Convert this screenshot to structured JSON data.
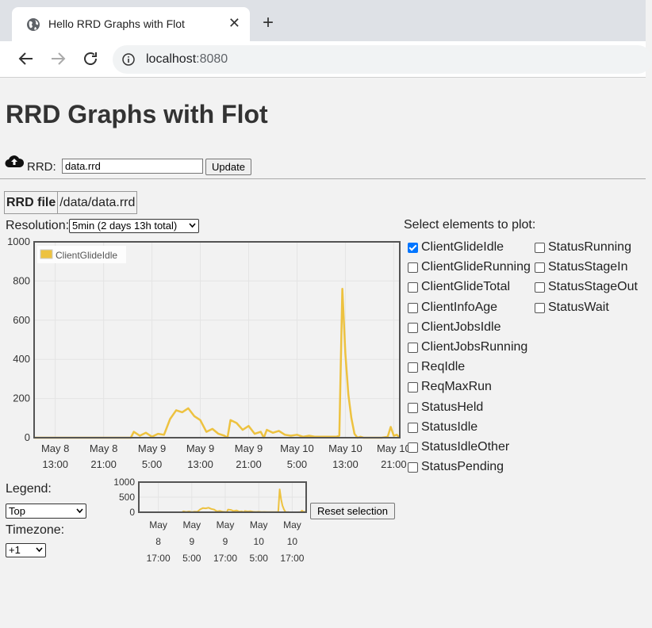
{
  "browser": {
    "tab_title": "Hello RRD Graphs with Flot",
    "close_glyph": "✕",
    "new_tab_glyph": "+",
    "url_host": "localhost",
    "url_port": ":8080"
  },
  "page": {
    "title": "RRD Graphs with Flot",
    "rrd_label": "RRD:",
    "rrd_input_value": "data.rrd",
    "update_label": "Update",
    "file_header": "RRD file",
    "file_path": "/data/data.rrd",
    "resolution_label": "Resolution:",
    "resolution_value": "5min (2 days 13h total)",
    "legend_label": "Legend:",
    "legend_value": "Top",
    "timezone_label": "Timezone:",
    "timezone_value": "+1",
    "reset_label": "Reset selection",
    "select_title": "Select elements to plot:"
  },
  "elements_col1": [
    {
      "label": "ClientGlideIdle",
      "checked": true
    },
    {
      "label": "ClientGlideRunning",
      "checked": false
    },
    {
      "label": "ClientGlideTotal",
      "checked": false
    },
    {
      "label": "ClientInfoAge",
      "checked": false
    },
    {
      "label": "ClientJobsIdle",
      "checked": false
    },
    {
      "label": "ClientJobsRunning",
      "checked": false
    },
    {
      "label": "ReqIdle",
      "checked": false
    },
    {
      "label": "ReqMaxRun",
      "checked": false
    },
    {
      "label": "StatusHeld",
      "checked": false
    },
    {
      "label": "StatusIdle",
      "checked": false
    },
    {
      "label": "StatusIdleOther",
      "checked": false
    },
    {
      "label": "StatusPending",
      "checked": false
    }
  ],
  "elements_col2": [
    {
      "label": "StatusRunning",
      "checked": false
    },
    {
      "label": "StatusStageIn",
      "checked": false
    },
    {
      "label": "StatusStageOut",
      "checked": false
    },
    {
      "label": "StatusWait",
      "checked": false
    }
  ],
  "colors": {
    "series": "#edc240",
    "grid": "#e4e4e4",
    "frame": "#545454"
  },
  "chart_data": [
    {
      "type": "line",
      "series": [
        {
          "name": "ClientGlideIdle"
        }
      ],
      "legend_position": "top-left",
      "ylim": [
        0,
        1000
      ],
      "y_ticks": [
        "0",
        "200",
        "400",
        "600",
        "800",
        "1000"
      ],
      "x_ticks": [
        [
          "May 8",
          "13:00"
        ],
        [
          "May 8",
          "21:00"
        ],
        [
          "May 9",
          "5:00"
        ],
        [
          "May 9",
          "13:00"
        ],
        [
          "May 9",
          "21:00"
        ],
        [
          "May 10",
          "5:00"
        ],
        [
          "May 10",
          "13:00"
        ],
        [
          "May 10",
          "21:00"
        ]
      ],
      "x_hours_from_may8_00": [
        13,
        21,
        29,
        37,
        45,
        53,
        61,
        69
      ],
      "x_range_hours": [
        9.5,
        70
      ],
      "x": [
        9.5,
        25.5,
        26,
        27,
        28,
        29,
        30,
        31,
        32,
        33,
        34,
        35,
        36,
        37,
        38,
        39,
        40,
        41,
        41.5,
        42,
        43,
        44,
        45,
        46,
        47,
        47.5,
        48,
        49,
        50,
        51,
        52,
        53,
        54,
        55,
        56,
        57,
        58,
        59,
        59.5,
        60,
        60.5,
        61,
        61.5,
        62,
        62.5,
        63,
        63.5,
        64,
        64.5,
        65,
        66,
        67,
        68,
        68.5,
        69,
        69.5,
        70
      ],
      "y": [
        0,
        0,
        30,
        10,
        25,
        5,
        20,
        15,
        95,
        140,
        130,
        150,
        110,
        90,
        30,
        45,
        20,
        10,
        0,
        90,
        75,
        40,
        60,
        20,
        30,
        0,
        40,
        25,
        35,
        15,
        10,
        15,
        5,
        10,
        5,
        5,
        5,
        5,
        5,
        10,
        760,
        430,
        220,
        100,
        20,
        0,
        5,
        0,
        0,
        0,
        0,
        0,
        5,
        55,
        10,
        15,
        0
      ]
    },
    {
      "type": "line",
      "series": [
        {
          "name": "ClientGlideIdle"
        }
      ],
      "ylim": [
        0,
        1000
      ],
      "y_ticks": [
        "0",
        "500",
        "1000"
      ],
      "x_ticks": [
        [
          "May",
          "8",
          "17:00"
        ],
        [
          "May",
          "9",
          "5:00"
        ],
        [
          "May",
          "9",
          "17:00"
        ],
        [
          "May",
          "10",
          "5:00"
        ],
        [
          "May",
          "10",
          "17:00"
        ]
      ],
      "x_hours_from_may8_00": [
        17,
        29,
        41,
        53,
        65
      ],
      "x_range_hours": [
        10,
        70
      ]
    }
  ]
}
